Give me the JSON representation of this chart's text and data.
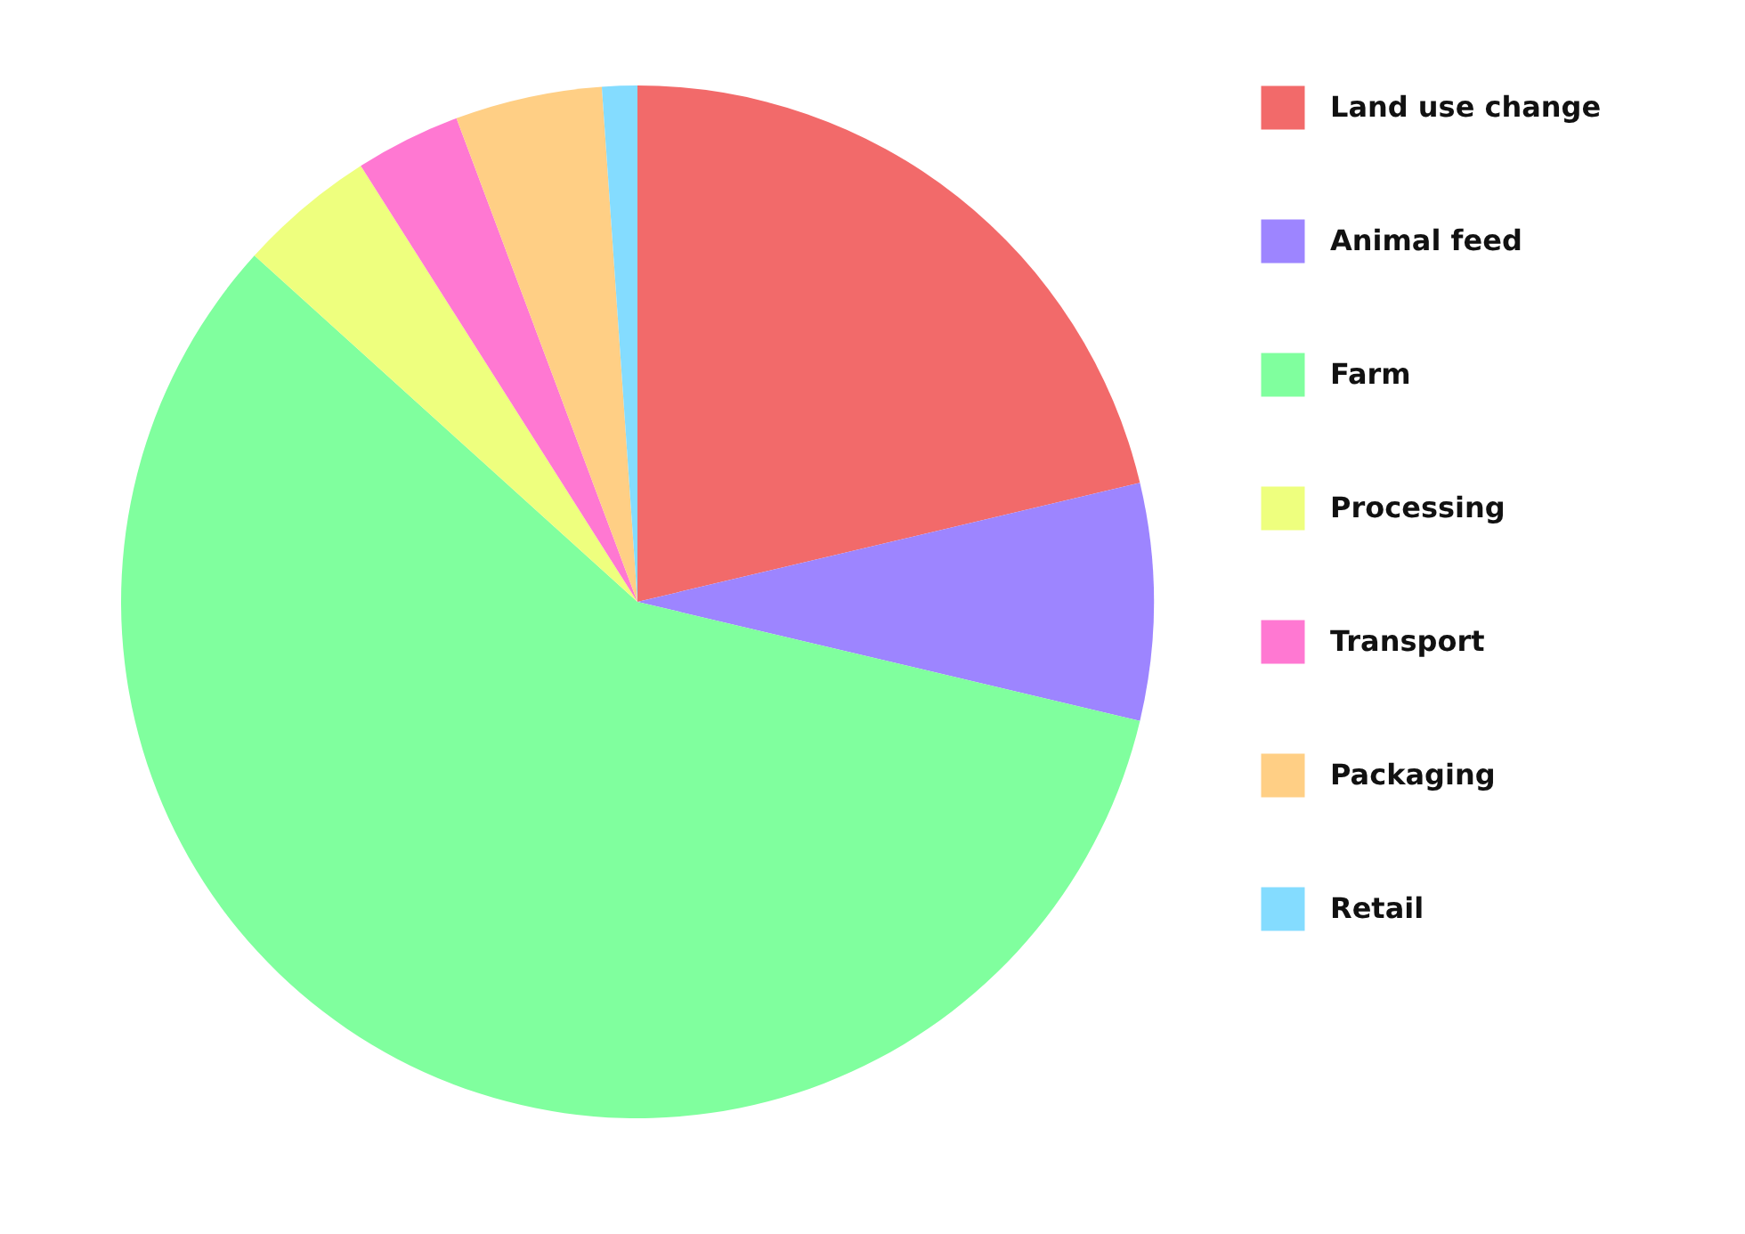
{
  "chart_data": {
    "type": "pie",
    "categories": [
      "Land use change",
      "Animal feed",
      "Farm",
      "Processing",
      "Transport",
      "Packaging",
      "Retail"
    ],
    "values": [
      21.3,
      7.4,
      58.0,
      4.3,
      3.3,
      4.6,
      1.1
    ],
    "colors": [
      "#f26a6a",
      "#9d85ff",
      "#80ff9e",
      "#eeff7e",
      "#ff78d2",
      "#ffcf85",
      "#84dcff"
    ],
    "legend": "right"
  }
}
